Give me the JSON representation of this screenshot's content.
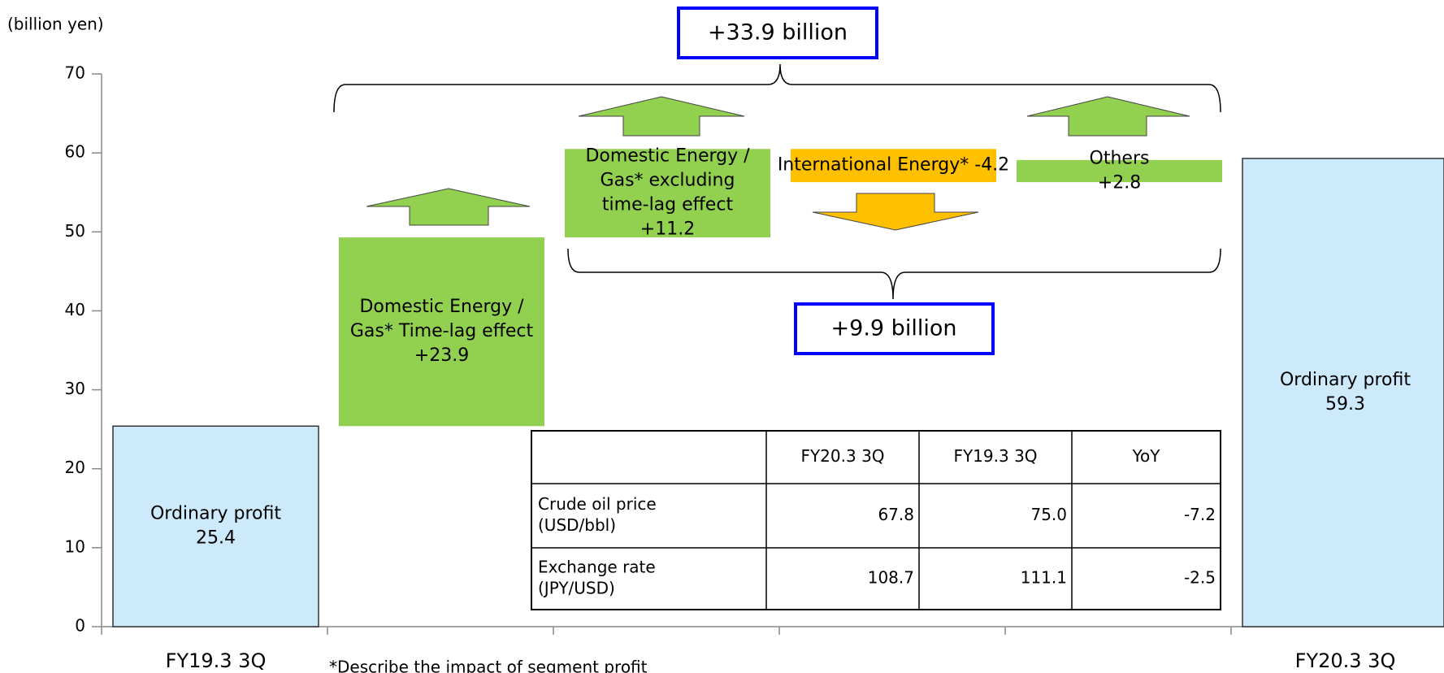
{
  "chart_data": {
    "type": "waterfall",
    "y_label": "(billion yen)",
    "categories": [
      "FY19.3 3Q",
      null,
      null,
      null,
      null,
      "FY20.3 3Q"
    ],
    "kinds": [
      "total",
      "delta",
      "delta",
      "delta",
      "delta",
      "total"
    ],
    "bar_labels": [
      [
        "Ordinary profit"
      ],
      [
        "Domestic Energy /",
        "Gas* Time-lag effect"
      ],
      [
        "Domestic Energy /",
        "Gas* excluding",
        "time-lag effect"
      ],
      [
        "International Energy*"
      ],
      [
        "Others"
      ],
      [
        "Ordinary profit"
      ]
    ],
    "values": [
      25.4,
      23.9,
      11.2,
      -4.2,
      2.8,
      59.3
    ],
    "value_labels": [
      "25.4",
      "+23.9",
      "+11.2",
      "-4.2",
      "+2.8",
      "59.3"
    ],
    "colors": [
      "#cceafb",
      "#92d050",
      "#92d050",
      "#ffc000",
      "#92d050",
      "#cceafb"
    ],
    "ylim": [
      0,
      70
    ],
    "yticks": [
      0,
      10,
      20,
      30,
      40,
      50,
      60,
      70
    ],
    "annotations": [
      "+33.9 billion",
      "+9.9 billion"
    ],
    "footnote": "*Describe the impact of segment profit"
  },
  "table": {
    "columns": [
      "FY20.3 3Q",
      "FY19.3 3Q",
      "YoY"
    ],
    "rows": [
      {
        "label": [
          "Crude oil price",
          "(USD/bbl)"
        ],
        "cells": [
          "67.8",
          "75.0",
          "-7.2"
        ]
      },
      {
        "label": [
          "Exchange rate",
          "(JPY/USD)"
        ],
        "cells": [
          "108.7",
          "111.1",
          "-2.5"
        ]
      }
    ]
  }
}
